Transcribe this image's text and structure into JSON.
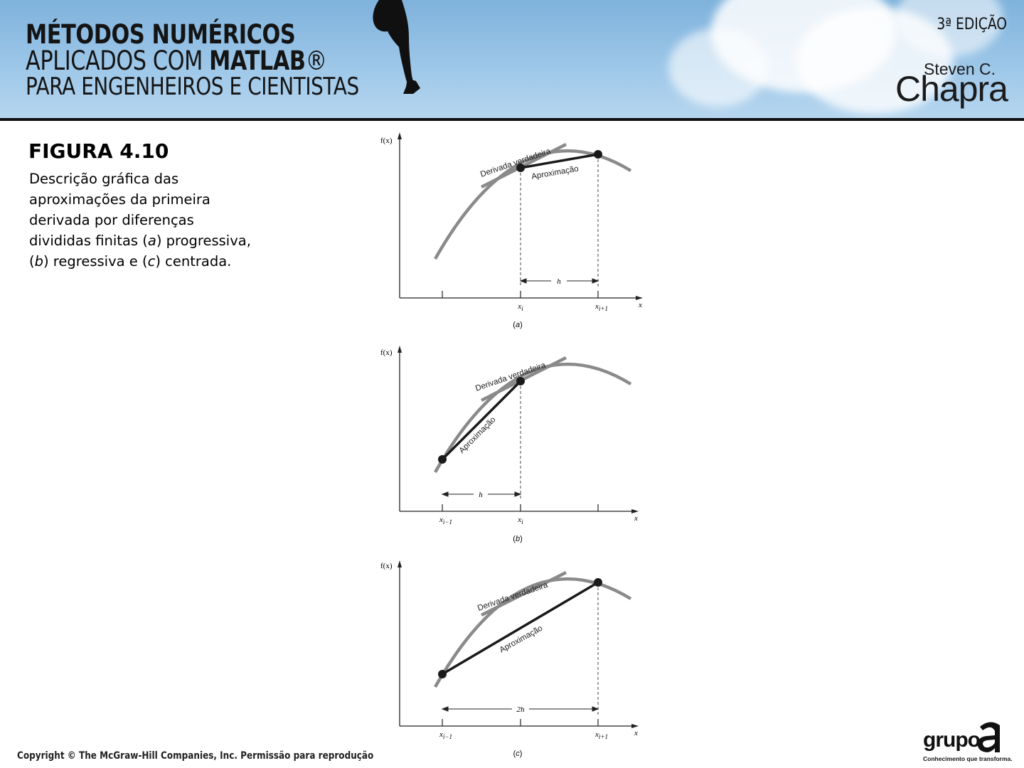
{
  "header": {
    "title_line1": "MÉTODOS NUMÉRICOS",
    "title_line2_prefix": "APLICADOS COM ",
    "title_line2_bold": "MATLAB",
    "title_line2_mark": "®",
    "title_line3": "PARA ENGENHEIROS E CIENTISTAS",
    "edition": "3ª EDIÇÃO",
    "author_first": "Steven C.",
    "author_last": "Chapra"
  },
  "caption": {
    "title": "FIGURA 4.10",
    "desc_1": "Descrição gráfica das aproximações da primeira derivada por diferenças divididas finitas (",
    "desc_a": "a",
    "desc_2": ") progressiva, (",
    "desc_b": "b",
    "desc_3": ") regressiva e (",
    "desc_c": "c",
    "desc_4": ") centrada."
  },
  "colors": {
    "curve": "#8a8a8a",
    "approximation": "#1a1a1a",
    "axis": "#222222"
  },
  "panels": [
    {
      "yaxis_label": "f(x)",
      "xaxis_label": "x",
      "tangent_label": "Derivada verdadeira",
      "approx_label": "Aproximação",
      "interval_label": "h",
      "tick_left": "",
      "tick_left_sub": "",
      "tick_mid": "x",
      "tick_mid_sub": "i",
      "tick_right": "x",
      "tick_right_sub": "i+1",
      "caption_open": "(",
      "caption_letter": "a",
      "caption_close": ")"
    },
    {
      "yaxis_label": "f(x)",
      "xaxis_label": "x",
      "tangent_label": "Derivada verdadeira",
      "approx_label": "Aproximação",
      "interval_label": "h",
      "tick_left": "x",
      "tick_left_sub": "i−1",
      "tick_mid": "x",
      "tick_mid_sub": "i",
      "tick_right": "",
      "tick_right_sub": "",
      "caption_open": "(",
      "caption_letter": "b",
      "caption_close": ")"
    },
    {
      "yaxis_label": "f(x)",
      "xaxis_label": "x",
      "tangent_label": "Derivada verdadeira",
      "approx_label": "Aproximação",
      "interval_label": "2h",
      "tick_left": "x",
      "tick_left_sub": "i−1",
      "tick_mid": "",
      "tick_mid_sub": "",
      "tick_right": "x",
      "tick_right_sub": "i+1",
      "caption_open": "(",
      "caption_letter": "c",
      "caption_close": ")"
    }
  ],
  "footer": {
    "copyright": "Copyright © The McGraw-Hill Companies, Inc. Permissão para reprodução",
    "publisher_word": "grupo",
    "publisher_tagline": "Conhecimento que transforma."
  }
}
